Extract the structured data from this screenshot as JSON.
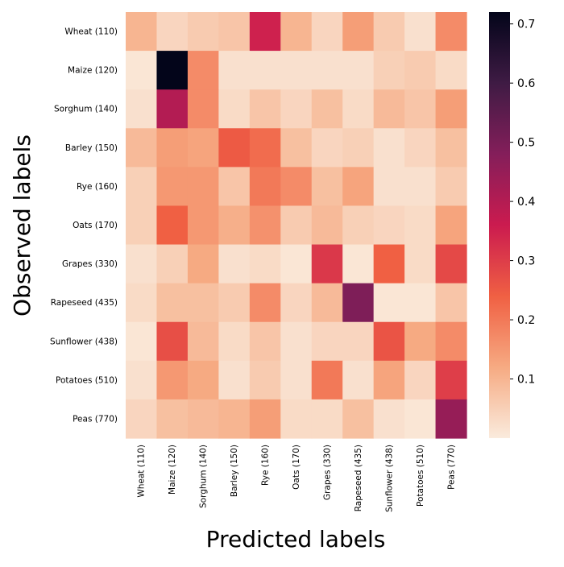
{
  "chart_data": {
    "type": "heatmap",
    "title": "",
    "xlabel": "Predicted labels",
    "ylabel": "Observed labels",
    "x_categories": [
      "Wheat (110)",
      "Maize (120)",
      "Sorghum (140)",
      "Barley (150)",
      "Rye (160)",
      "Oats (170)",
      "Grapes (330)",
      "Rapeseed (435)",
      "Sunflower (438)",
      "Potatoes (510)",
      "Peas (770)"
    ],
    "y_categories": [
      "Wheat (110)",
      "Maize (120)",
      "Sorghum (140)",
      "Barley (150)",
      "Rye (160)",
      "Oats (170)",
      "Grapes (330)",
      "Rapeseed (435)",
      "Sunflower (438)",
      "Potatoes (510)",
      "Peas (770)"
    ],
    "values": [
      [
        0.1,
        0.04,
        0.06,
        0.07,
        0.35,
        0.1,
        0.04,
        0.14,
        0.06,
        0.02,
        0.17
      ],
      [
        0.01,
        0.72,
        0.17,
        0.02,
        0.02,
        0.02,
        0.02,
        0.02,
        0.05,
        0.06,
        0.03
      ],
      [
        0.02,
        0.4,
        0.17,
        0.03,
        0.07,
        0.04,
        0.08,
        0.03,
        0.09,
        0.07,
        0.14
      ],
      [
        0.09,
        0.14,
        0.13,
        0.25,
        0.22,
        0.08,
        0.04,
        0.05,
        0.02,
        0.04,
        0.08
      ],
      [
        0.05,
        0.15,
        0.15,
        0.07,
        0.2,
        0.17,
        0.08,
        0.13,
        0.02,
        0.02,
        0.06
      ],
      [
        0.05,
        0.24,
        0.15,
        0.11,
        0.16,
        0.06,
        0.09,
        0.05,
        0.04,
        0.03,
        0.13
      ],
      [
        0.02,
        0.05,
        0.12,
        0.02,
        0.03,
        0.01,
        0.31,
        0.01,
        0.24,
        0.03,
        0.28
      ],
      [
        0.03,
        0.08,
        0.08,
        0.06,
        0.17,
        0.04,
        0.09,
        0.49,
        0.01,
        0.01,
        0.07
      ],
      [
        0.01,
        0.27,
        0.09,
        0.03,
        0.07,
        0.02,
        0.04,
        0.04,
        0.26,
        0.12,
        0.17
      ],
      [
        0.02,
        0.15,
        0.12,
        0.02,
        0.06,
        0.02,
        0.2,
        0.02,
        0.13,
        0.04,
        0.3
      ],
      [
        0.04,
        0.08,
        0.09,
        0.1,
        0.14,
        0.03,
        0.03,
        0.08,
        0.02,
        0.01,
        0.45
      ]
    ],
    "colorbar": {
      "min": 0.0,
      "max": 0.72,
      "ticks": [
        "0.1",
        "0.2",
        "0.3",
        "0.4",
        "0.5",
        "0.6",
        "0.7"
      ]
    },
    "colormap": "rocket_r",
    "colormap_stops": [
      "#FAEBDD",
      "#F6AA82",
      "#F06043",
      "#CB1B4F",
      "#841E5A",
      "#3F1B44",
      "#03051A"
    ]
  }
}
